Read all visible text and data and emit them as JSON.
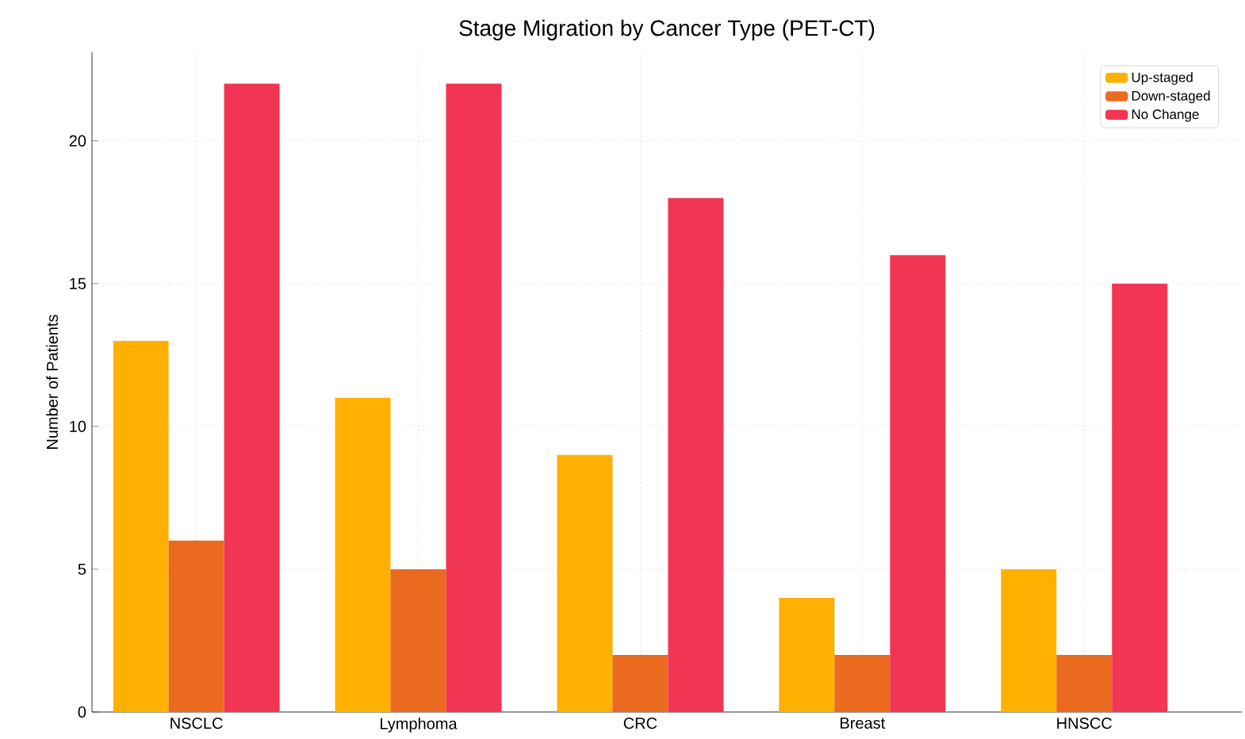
{
  "chart_data": {
    "type": "bar",
    "title": "Stage Migration by Cancer Type (PET-CT)",
    "ylabel": "Number of Patients",
    "categories": [
      "NSCLC",
      "Lymphoma",
      "CRC",
      "Breast",
      "HNSCC"
    ],
    "series": [
      {
        "name": "Up-staged",
        "color": "#ffb000",
        "values": [
          13,
          11,
          9,
          4,
          5
        ]
      },
      {
        "name": "Down-staged",
        "color": "#ea6a20",
        "values": [
          6,
          5,
          2,
          2,
          2
        ]
      },
      {
        "name": "No Change",
        "color": "#f23553",
        "values": [
          22,
          22,
          18,
          16,
          15
        ]
      }
    ],
    "ylim": [
      0,
      23.1
    ],
    "yticks": [
      0,
      5,
      10,
      15,
      20
    ],
    "grid": true,
    "legend": "top right"
  }
}
